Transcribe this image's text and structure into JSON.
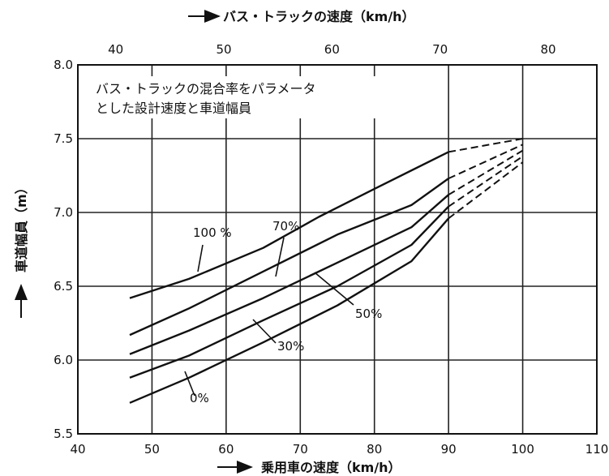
{
  "chart_data": {
    "type": "line",
    "xlabel": "乗用車の速度（km/h）",
    "x2label": "バス・トラックの速度（km/h）",
    "ylabel": "車道幅員（m）",
    "xlim": [
      40,
      110
    ],
    "x2lim": [
      36.5,
      84.5
    ],
    "ylim": [
      5.5,
      8.0
    ],
    "x_ticks": [
      "40",
      "50",
      "60",
      "70",
      "80",
      "90",
      "100",
      "110"
    ],
    "x2_ticks": [
      "40",
      "50",
      "60",
      "70",
      "80"
    ],
    "y_ticks": [
      "5.5",
      "6.0",
      "6.5",
      "7.0",
      "7.5",
      "8.0"
    ],
    "grid": true,
    "annotation_lines": [
      "バス・トラックの混合率をパラメータ",
      "とした設計速度と車道幅員"
    ],
    "series": [
      {
        "name": "100 %",
        "solid": [
          [
            47,
            6.42
          ],
          [
            55,
            6.55
          ],
          [
            65,
            6.76
          ],
          [
            72.5,
            6.97
          ],
          [
            80,
            7.16
          ],
          [
            90,
            7.41
          ]
        ],
        "dashed": [
          [
            90,
            7.41
          ],
          [
            100,
            7.5
          ]
        ]
      },
      {
        "name": "70%",
        "solid": [
          [
            47,
            6.17
          ],
          [
            55,
            6.35
          ],
          [
            65,
            6.6
          ],
          [
            75,
            6.85
          ],
          [
            85,
            7.05
          ],
          [
            90,
            7.23
          ]
        ],
        "dashed": [
          [
            90,
            7.23
          ],
          [
            100,
            7.46
          ]
        ]
      },
      {
        "name": "50%",
        "solid": [
          [
            47,
            6.04
          ],
          [
            55,
            6.2
          ],
          [
            65,
            6.42
          ],
          [
            75,
            6.66
          ],
          [
            85,
            6.9
          ],
          [
            90,
            7.12
          ]
        ],
        "dashed": [
          [
            90,
            7.12
          ],
          [
            100,
            7.42
          ]
        ]
      },
      {
        "name": "30%",
        "solid": [
          [
            47,
            5.88
          ],
          [
            55,
            6.03
          ],
          [
            65,
            6.27
          ],
          [
            75,
            6.5
          ],
          [
            85,
            6.78
          ],
          [
            90,
            7.04
          ]
        ],
        "dashed": [
          [
            90,
            7.04
          ],
          [
            100,
            7.38
          ]
        ]
      },
      {
        "name": "0%",
        "solid": [
          [
            47,
            5.71
          ],
          [
            55,
            5.88
          ],
          [
            65,
            6.12
          ],
          [
            75,
            6.37
          ],
          [
            85,
            6.67
          ],
          [
            90,
            6.96
          ]
        ],
        "dashed": [
          [
            90,
            6.96
          ],
          [
            100,
            7.34
          ]
        ]
      }
    ]
  }
}
